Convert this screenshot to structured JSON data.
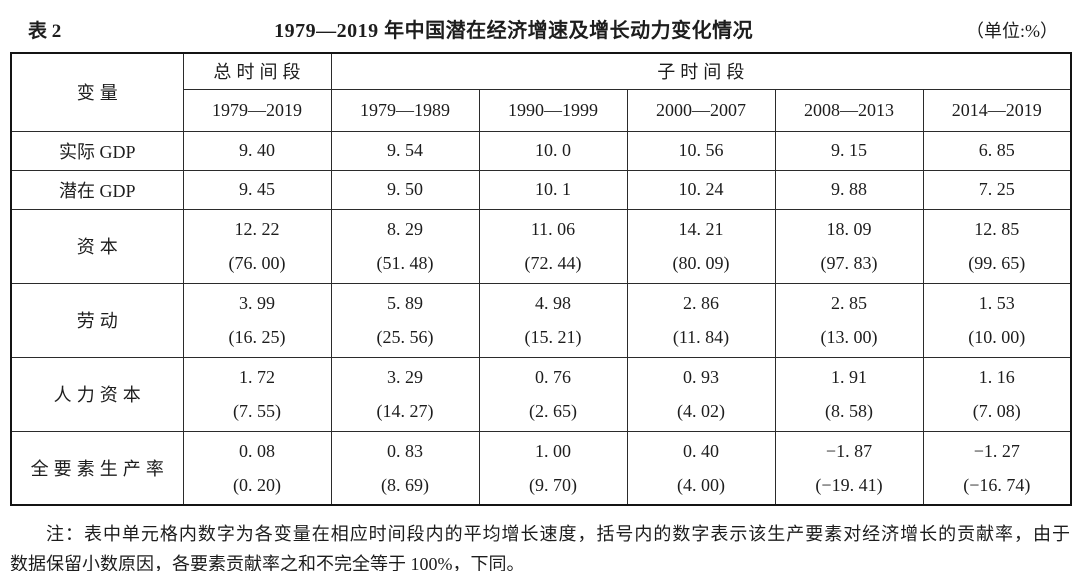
{
  "header": {
    "table_label": "表 2",
    "title": "1979—2019 年中国潜在经济增速及增长动力变化情况",
    "unit": "（单位:%）"
  },
  "table": {
    "header": {
      "variable": "变量",
      "total_period": "总时间段",
      "sub_period": "子时间段",
      "periods": [
        "1979—2019",
        "1979—1989",
        "1990—1999",
        "2000—2007",
        "2008—2013",
        "2014—2019"
      ]
    },
    "rows": [
      {
        "label": "实际 GDP",
        "values": [
          "9. 40",
          "9. 54",
          "10. 0",
          "10. 56",
          "9. 15",
          "6. 85"
        ]
      },
      {
        "label": "潜在 GDP",
        "values": [
          "9. 45",
          "9. 50",
          "10. 1",
          "10. 24",
          "9. 88",
          "7. 25"
        ]
      },
      {
        "label": "资本",
        "values": [
          "12. 22",
          "8. 29",
          "11. 06",
          "14. 21",
          "18. 09",
          "12. 85"
        ],
        "contrib": [
          "(76. 00)",
          "(51. 48)",
          "(72. 44)",
          "(80. 09)",
          "(97. 83)",
          "(99. 65)"
        ]
      },
      {
        "label": "劳动",
        "values": [
          "3. 99",
          "5. 89",
          "4. 98",
          "2. 86",
          "2. 85",
          "1. 53"
        ],
        "contrib": [
          "(16. 25)",
          "(25. 56)",
          "(15. 21)",
          "(11. 84)",
          "(13. 00)",
          "(10. 00)"
        ]
      },
      {
        "label": "人力资本",
        "values": [
          "1. 72",
          "3. 29",
          "0. 76",
          "0. 93",
          "1. 91",
          "1. 16"
        ],
        "contrib": [
          "(7. 55)",
          "(14. 27)",
          "(2. 65)",
          "(4. 02)",
          "(8. 58)",
          "(7. 08)"
        ]
      },
      {
        "label": "全要素生产率",
        "values": [
          "0. 08",
          "0. 83",
          "1. 00",
          "0. 40",
          "−1. 87",
          "−1. 27"
        ],
        "contrib": [
          "(0. 20)",
          "(8. 69)",
          "(9. 70)",
          "(4. 00)",
          "(−19. 41)",
          "(−16. 74)"
        ]
      }
    ]
  },
  "note": {
    "lines": [
      "注：表中单元格内数字为各变量在相应时间段内的平均增长速度，括号内的数字表示该生产要素对经济增长的贡献率，由于",
      "数据保留小数原因，各要素贡献率之和不完全等于 100%，下同。"
    ]
  },
  "colors": {
    "text": "#1d1d1d",
    "border": "#2b2b2b",
    "outer_border": "#141414",
    "background": "#ffffff"
  }
}
